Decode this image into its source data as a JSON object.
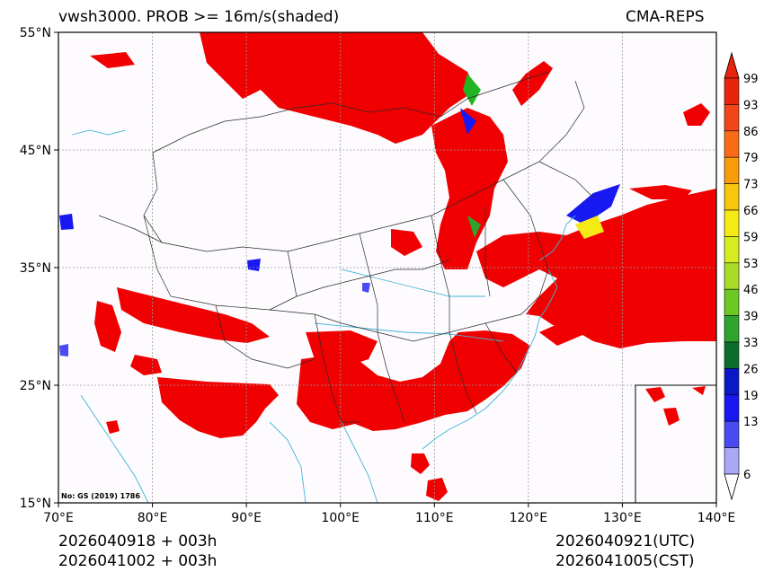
{
  "title": {
    "left": "vwsh3000. PROB >= 16m/s(shaded)",
    "right": "CMA-REPS"
  },
  "footer": {
    "init_line1": "2026040918  +  003h",
    "init_line2": "2026041002  +  003h",
    "valid_utc": "2026040921(UTC)",
    "valid_cst": "2026041005(CST)"
  },
  "map": {
    "lon_ticks": [
      "70°E",
      "80°E",
      "90°E",
      "100°E",
      "110°E",
      "120°E",
      "130°E",
      "140°E"
    ],
    "lat_ticks": [
      "55°N",
      "45°N",
      "35°N",
      "25°N",
      "15°N"
    ],
    "lon_range": [
      70,
      140
    ],
    "lat_range": [
      15,
      55
    ],
    "approval_note": "No: GS (2019) 1786",
    "shade_color": "#f00000",
    "coast_color": "#3fb4d8"
  },
  "colorbar": {
    "labels": [
      "99",
      "93",
      "86",
      "79",
      "73",
      "66",
      "59",
      "53",
      "46",
      "39",
      "33",
      "26",
      "19",
      "13",
      "6"
    ],
    "colors": [
      "#e8240c",
      "#f2461a",
      "#f86c18",
      "#fa9b0c",
      "#f8c60a",
      "#f4ea14",
      "#d6ec20",
      "#a8dc26",
      "#6cc822",
      "#2ea42c",
      "#0a6e2a",
      "#0a18c8",
      "#1818f2",
      "#4a4af4",
      "#a8a8f6"
    ]
  }
}
